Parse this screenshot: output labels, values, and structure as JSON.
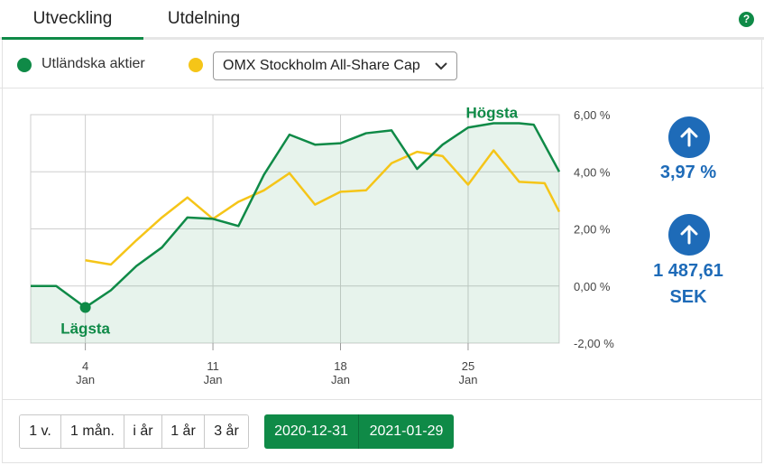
{
  "tabs": [
    {
      "label": "Utveckling",
      "active": true
    },
    {
      "label": "Utdelning",
      "active": false
    }
  ],
  "help_icon": "?",
  "legend": {
    "series_label": "Utländska aktier",
    "series_color": "#0f8a47",
    "compare_color": "#f5c518",
    "compare_select": "OMX Stockholm All-Share Cap"
  },
  "stats": {
    "change_percent": "3,97 %",
    "value_line1": "1 487,61",
    "value_line2": "SEK",
    "accent_color": "#1e6bb8",
    "icon": "arrow-up-icon"
  },
  "period_buttons": [
    "1 v.",
    "1 mån.",
    "i år",
    "1 år",
    "3 år"
  ],
  "date_range": {
    "from": "2020-12-31",
    "to": "2021-01-29"
  },
  "chart_data": {
    "type": "line",
    "y_tick_labels": [
      "6,00 %",
      "4,00 %",
      "2,00 %",
      "0,00 %",
      "-2,00 %"
    ],
    "ylim": [
      -2,
      6
    ],
    "x_ticks": [
      {
        "day": 4,
        "label_top": "4",
        "label_bottom": "Jan"
      },
      {
        "day": 11,
        "label_top": "11",
        "label_bottom": "Jan"
      },
      {
        "day": 18,
        "label_top": "18",
        "label_bottom": "Jan"
      },
      {
        "day": 25,
        "label_top": "25",
        "label_bottom": "Jan"
      }
    ],
    "xlim": [
      1,
      30
    ],
    "annotations": {
      "high": "Högsta",
      "low": "Lägsta"
    },
    "grid": true,
    "series": [
      {
        "name": "Utländska aktier",
        "color": "#0f8a47",
        "area": true,
        "points": [
          [
            1,
            0.0
          ],
          [
            2.4,
            0.0
          ],
          [
            4,
            -0.75
          ],
          [
            5.4,
            -0.15
          ],
          [
            6.8,
            0.7
          ],
          [
            8.2,
            1.35
          ],
          [
            9.6,
            2.4
          ],
          [
            11,
            2.35
          ],
          [
            12.4,
            2.1
          ],
          [
            13.8,
            3.9
          ],
          [
            15.2,
            5.3
          ],
          [
            16.6,
            4.95
          ],
          [
            18,
            5.0
          ],
          [
            19.4,
            5.35
          ],
          [
            20.8,
            5.45
          ],
          [
            22.2,
            4.1
          ],
          [
            23.6,
            4.95
          ],
          [
            25,
            5.55
          ],
          [
            26.4,
            5.7
          ],
          [
            27.8,
            5.7
          ],
          [
            28.6,
            5.65
          ],
          [
            30,
            4.0
          ]
        ]
      },
      {
        "name": "OMX Stockholm All-Share Cap",
        "color": "#f5c518",
        "area": false,
        "points": [
          [
            4,
            0.9
          ],
          [
            5.4,
            0.75
          ],
          [
            6.8,
            1.6
          ],
          [
            8.2,
            2.4
          ],
          [
            9.6,
            3.1
          ],
          [
            11,
            2.35
          ],
          [
            12.4,
            2.95
          ],
          [
            13.8,
            3.35
          ],
          [
            15.2,
            3.95
          ],
          [
            16.6,
            2.85
          ],
          [
            18,
            3.3
          ],
          [
            19.4,
            3.35
          ],
          [
            20.8,
            4.3
          ],
          [
            22.2,
            4.7
          ],
          [
            23.6,
            4.55
          ],
          [
            25,
            3.55
          ],
          [
            26.4,
            4.75
          ],
          [
            27.8,
            3.65
          ],
          [
            29.2,
            3.6
          ],
          [
            30,
            2.6
          ]
        ]
      }
    ]
  }
}
